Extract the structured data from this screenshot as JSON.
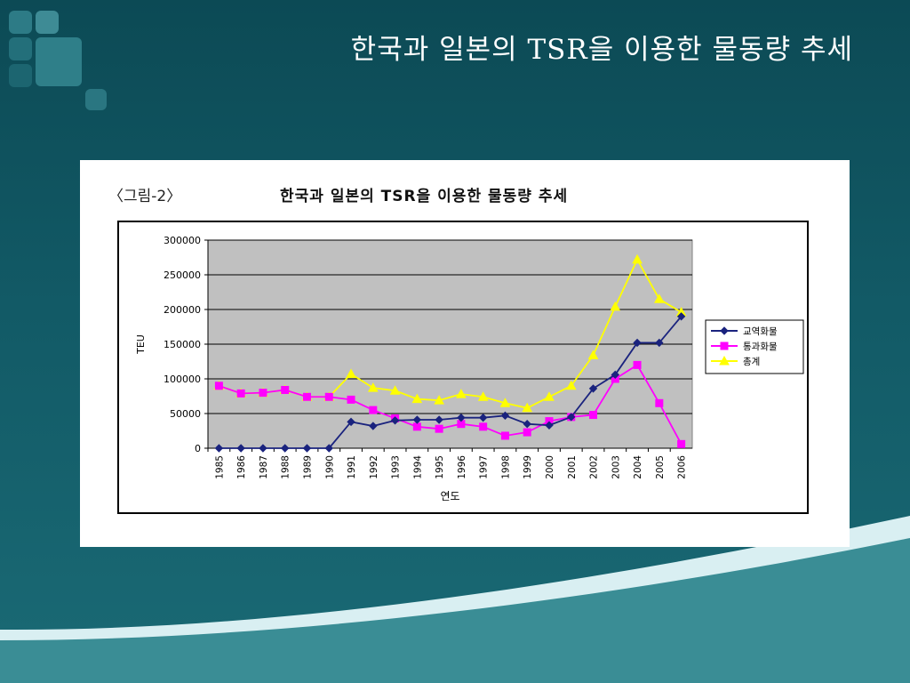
{
  "slide": {
    "title": "한국과 일본의 TSR을 이용한 물동량 추세"
  },
  "figure": {
    "label": "〈그림-2〉",
    "title": "한국과 일본의 TSR을 이용한 물동량 추세"
  },
  "colors": {
    "background": "#0c4a55",
    "plot_background": "#c0c0c0",
    "series_1": "#1a237e",
    "series_2": "#ff00ff",
    "series_3": "#ffff00",
    "wave_light": "#d9eff2",
    "wave_teal": "#3a8d95"
  },
  "chart_data": {
    "type": "line",
    "title": "한국과 일본의 TSR을 이용한 물동량 추세",
    "xlabel": "연도",
    "ylabel": "TEU",
    "ylim": [
      0,
      300000
    ],
    "yticks": [
      "0",
      "50000",
      "100000",
      "150000",
      "200000",
      "250000",
      "300000"
    ],
    "grid": "horizontal",
    "legend_position": "right",
    "categories": [
      "1985",
      "1986",
      "1987",
      "1988",
      "1989",
      "1990",
      "1991",
      "1992",
      "1993",
      "1994",
      "1995",
      "1996",
      "1997",
      "1998",
      "1999",
      "2000",
      "2001",
      "2002",
      "2003",
      "2004",
      "2005",
      "2006"
    ],
    "series": [
      {
        "name": "교역화물",
        "marker": "diamond",
        "color": "#1a237e",
        "values": [
          0,
          0,
          0,
          0,
          0,
          0,
          38000,
          32000,
          40000,
          41000,
          41000,
          44000,
          44000,
          47000,
          35000,
          33000,
          45000,
          86000,
          106000,
          152000,
          152000,
          190000
        ]
      },
      {
        "name": "통과화물",
        "marker": "square",
        "color": "#ff00ff",
        "values": [
          90000,
          79000,
          80000,
          84000,
          74000,
          74000,
          70000,
          55000,
          43000,
          31000,
          28000,
          35000,
          31000,
          18000,
          23000,
          39000,
          45000,
          48000,
          100000,
          120000,
          65000,
          6000
        ]
      },
      {
        "name": "총계",
        "marker": "triangle",
        "color": "#ffff00",
        "values": [
          90000,
          79000,
          80000,
          84000,
          74000,
          74000,
          107000,
          87000,
          83000,
          71000,
          69000,
          78000,
          74000,
          65000,
          58000,
          74000,
          90000,
          134000,
          204000,
          272000,
          215000,
          196000
        ]
      }
    ]
  }
}
